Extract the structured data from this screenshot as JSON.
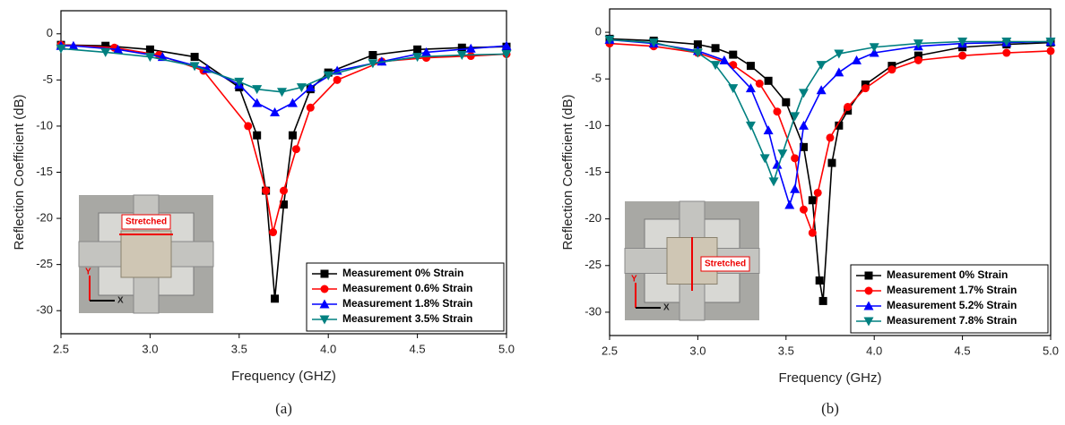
{
  "chart_data": [
    {
      "type": "line",
      "xlabel": "Frequency (GHZ)",
      "ylabel": "Reflection Coefficient (dB)",
      "caption": "(a)",
      "annotations": [
        "Stretched",
        "Y",
        "X"
      ],
      "xlim": [
        2.5,
        5.0
      ],
      "ylim": [
        -32.5,
        2.5
      ],
      "xticks": [
        2.5,
        {
          "value": 3,
          "label": "3.0"
        },
        3.5,
        {
          "value": 4,
          "label": "4.0"
        },
        4.5,
        {
          "value": 5,
          "label": "5.0"
        }
      ],
      "yticks": [
        0,
        -5,
        -10,
        -15,
        -20,
        -25,
        -30
      ],
      "legend": "lower right",
      "series": [
        {
          "name": "Measurement 0% Strain",
          "color": "#000000",
          "marker": "square",
          "x": [
            2.5,
            2.75,
            3.0,
            3.25,
            3.5,
            3.6,
            3.65,
            3.7,
            3.75,
            3.8,
            3.9,
            4.0,
            4.25,
            4.5,
            4.75,
            5.0
          ],
          "values": [
            -1.2,
            -1.3,
            -1.7,
            -2.5,
            -5.8,
            -11,
            -17,
            -28.7,
            -18.5,
            -11,
            -6,
            -4.2,
            -2.3,
            -1.7,
            -1.5,
            -1.4
          ]
        },
        {
          "name": "Measurement 0.6% Strain",
          "color": "#ff0000",
          "marker": "circle",
          "x": [
            2.5,
            2.8,
            3.05,
            3.3,
            3.55,
            3.65,
            3.69,
            3.75,
            3.82,
            3.9,
            4.05,
            4.3,
            4.55,
            4.8,
            5.0
          ],
          "values": [
            -1.2,
            -1.5,
            -2.3,
            -4,
            -10,
            -17,
            -21.5,
            -17,
            -12.5,
            -8,
            -5,
            -3,
            -2.6,
            -2.4,
            -2.2
          ]
        },
        {
          "name": "Measurement 1.8% Strain",
          "color": "#0000ff",
          "marker": "triangle-up",
          "x": [
            2.5,
            2.57,
            2.82,
            3.07,
            3.32,
            3.5,
            3.6,
            3.7,
            3.8,
            3.9,
            4.05,
            4.3,
            4.55,
            4.8,
            5.0
          ],
          "values": [
            -1.3,
            -1.3,
            -1.7,
            -2.5,
            -3.8,
            -5.5,
            -7.5,
            -8.5,
            -7.5,
            -5.8,
            -4,
            -3,
            -2,
            -1.6,
            -1.3
          ]
        },
        {
          "name": "Measurement 3.5% Strain",
          "color": "#008080",
          "marker": "triangle-down",
          "x": [
            2.5,
            2.75,
            3.0,
            3.25,
            3.5,
            3.6,
            3.74,
            3.85,
            4.0,
            4.25,
            4.5,
            4.75,
            5.0
          ],
          "values": [
            -1.6,
            -2,
            -2.5,
            -3.5,
            -5.2,
            -6,
            -6.3,
            -5.8,
            -4.5,
            -3.2,
            -2.5,
            -2.3,
            -2.2
          ]
        }
      ]
    },
    {
      "type": "line",
      "xlabel": "Frequency (GHz)",
      "ylabel": "Reflection Coefficient (dB)",
      "caption": "(b)",
      "annotations": [
        "Stretched",
        "Y",
        "X"
      ],
      "xlim": [
        2.5,
        5.0
      ],
      "ylim": [
        -32.5,
        2.5
      ],
      "xticks": [
        2.5,
        {
          "value": 3,
          "label": "3.0"
        },
        3.5,
        {
          "value": 4,
          "label": "4.0"
        },
        4.5,
        {
          "value": 5,
          "label": "5.0"
        }
      ],
      "yticks": [
        0,
        -5,
        -10,
        -15,
        -20,
        -25,
        -30
      ],
      "legend": "lower right",
      "series": [
        {
          "name": "Measurement 0% Strain",
          "color": "#000000",
          "marker": "square",
          "x": [
            2.5,
            2.75,
            3.0,
            3.1,
            3.2,
            3.3,
            3.4,
            3.5,
            3.6,
            3.65,
            3.69,
            3.71,
            3.76,
            3.8,
            3.85,
            3.95,
            4.1,
            4.25,
            4.5,
            4.75,
            5.0
          ],
          "values": [
            -0.7,
            -0.9,
            -1.3,
            -1.7,
            -2.4,
            -3.6,
            -5.2,
            -7.5,
            -12.3,
            -18,
            -26.6,
            -28.8,
            -14,
            -10,
            -8.4,
            -5.6,
            -3.6,
            -2.5,
            -1.6,
            -1.3,
            -1.1
          ]
        },
        {
          "name": "Measurement 1.7% Strain",
          "color": "#ff0000",
          "marker": "circle",
          "x": [
            2.5,
            2.75,
            3.0,
            3.2,
            3.35,
            3.45,
            3.55,
            3.6,
            3.65,
            3.68,
            3.75,
            3.85,
            3.95,
            4.1,
            4.25,
            4.5,
            4.75,
            5.0
          ],
          "values": [
            -1.2,
            -1.5,
            -2.2,
            -3.5,
            -5.5,
            -8.5,
            -13.5,
            -19,
            -21.5,
            -17.2,
            -11.3,
            -8,
            -6,
            -4,
            -3,
            -2.5,
            -2.2,
            -2
          ]
        },
        {
          "name": "Measurement 5.2% Strain",
          "color": "#0000ff",
          "marker": "triangle-up",
          "x": [
            2.5,
            2.75,
            3.0,
            3.15,
            3.3,
            3.4,
            3.45,
            3.52,
            3.55,
            3.6,
            3.7,
            3.8,
            3.9,
            4.0,
            4.25,
            4.5,
            4.75,
            5.0
          ],
          "values": [
            -0.8,
            -1.2,
            -2,
            -3,
            -6,
            -10.5,
            -14.2,
            -18.5,
            -16.8,
            -10,
            -6.2,
            -4.3,
            -3,
            -2.2,
            -1.5,
            -1.2,
            -1.1,
            -1.0
          ]
        },
        {
          "name": "Measurement 7.8% Strain",
          "color": "#008080",
          "marker": "triangle-down",
          "x": [
            2.5,
            2.75,
            3.0,
            3.1,
            3.2,
            3.3,
            3.38,
            3.43,
            3.48,
            3.55,
            3.6,
            3.7,
            3.8,
            4.0,
            4.25,
            4.5,
            4.75,
            5.0
          ],
          "values": [
            -0.8,
            -1.1,
            -2.2,
            -3.5,
            -6,
            -10,
            -13.5,
            -16,
            -13,
            -9,
            -6.5,
            -3.5,
            -2.3,
            -1.6,
            -1.2,
            -1.0,
            -1.0,
            -1.0
          ]
        }
      ]
    }
  ]
}
